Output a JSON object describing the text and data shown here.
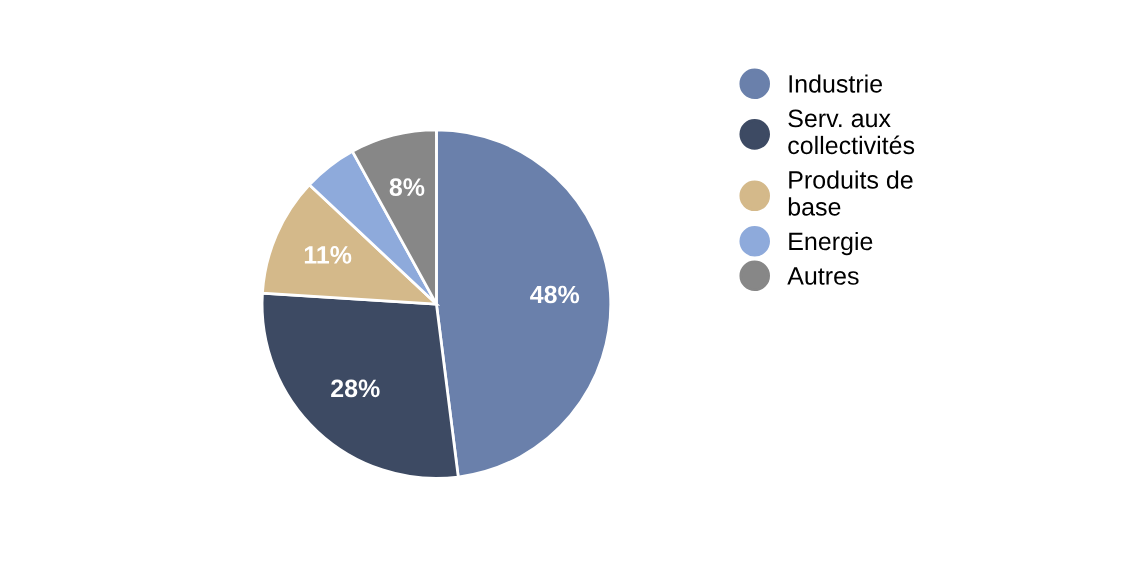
{
  "chart_data": {
    "type": "pie",
    "categories": [
      "Industrie",
      "Serv. aux collectivités",
      "Produits de base",
      "Energie",
      "Autres"
    ],
    "values": [
      48,
      28,
      11,
      5,
      8
    ],
    "colors": [
      "#6a80ab",
      "#3d4a63",
      "#d4b98a",
      "#8eaadb",
      "#878787"
    ],
    "value_labels": [
      "48%",
      "28%",
      "11%",
      null,
      "8%"
    ],
    "legend": "right"
  }
}
